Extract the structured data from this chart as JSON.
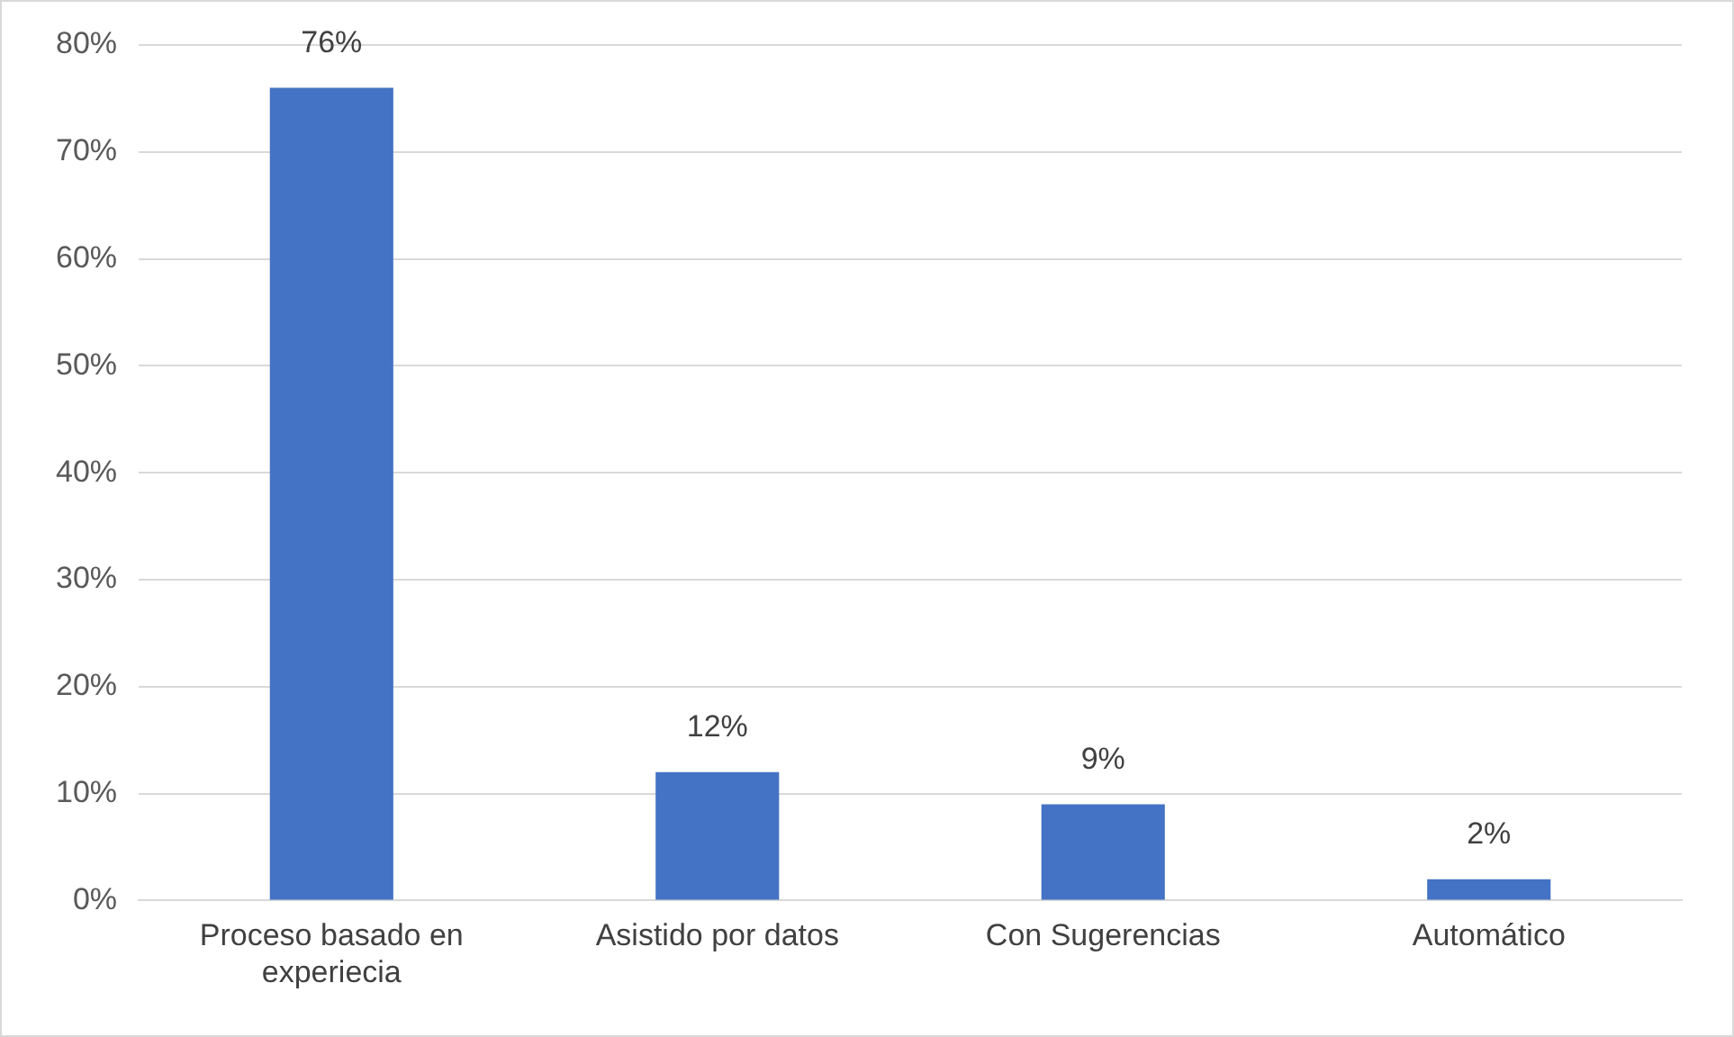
{
  "chart_data": {
    "type": "bar",
    "categories": [
      "Proceso basado en experiecia",
      "Asistido por datos",
      "Con Sugerencias",
      "Automático"
    ],
    "values": [
      76,
      12,
      9,
      2
    ],
    "value_labels": [
      "76%",
      "12%",
      "9%",
      "2%"
    ],
    "color": "#4472c4",
    "ylim": [
      0,
      80
    ],
    "yticks": [
      {
        "value": 0,
        "label": "0%"
      },
      {
        "value": 10,
        "label": "10%"
      },
      {
        "value": 20,
        "label": "20%"
      },
      {
        "value": 30,
        "label": "30%"
      },
      {
        "value": 40,
        "label": "40%"
      },
      {
        "value": 50,
        "label": "50%"
      },
      {
        "value": 60,
        "label": "60%"
      },
      {
        "value": 70,
        "label": "70%"
      },
      {
        "value": 80,
        "label": "80%"
      }
    ],
    "grid": "y",
    "legend": false
  }
}
